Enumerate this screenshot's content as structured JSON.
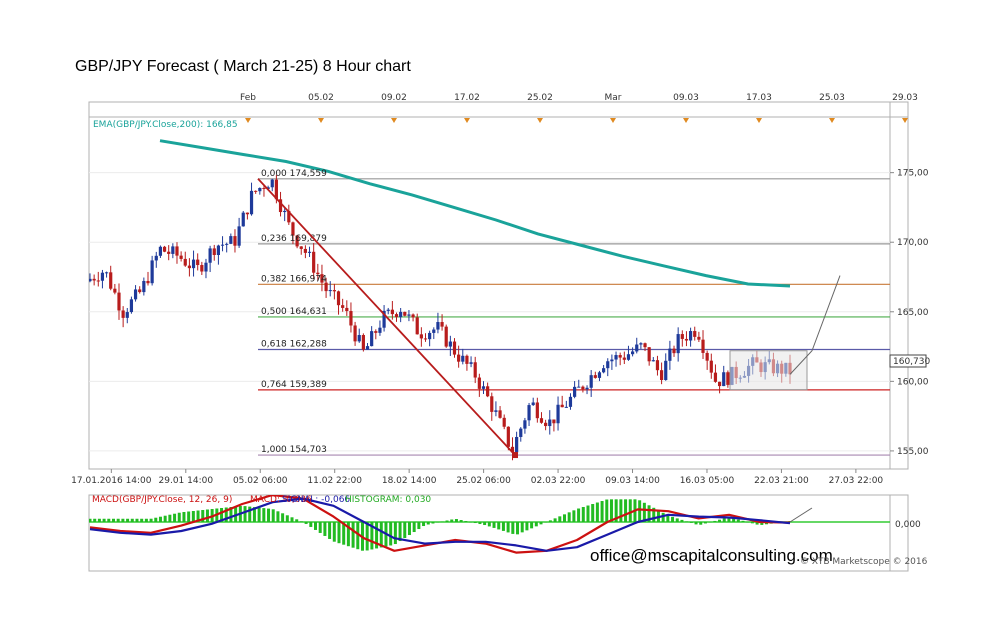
{
  "chart_data": [
    {
      "type": "candlestick",
      "title": "GBP/JPY Forecast ( March 21-25) 8 Hour chart",
      "y_ticks": [
        "175,00",
        "170,00",
        "165,00",
        "160,00",
        "155,00"
      ],
      "y_tick_values": [
        175,
        170,
        165,
        160,
        155
      ],
      "ylim": [
        153.7,
        179.0
      ],
      "x_date_labels": [
        "17.01.2016 14:00",
        "29.01 14:00",
        "05.02 06:00",
        "11.02 22:00",
        "18.02 14:00",
        "25.02 06:00",
        "02.03 22:00",
        "09.03 14:00",
        "16.03 05:00",
        "22.03 21:00",
        "27.03 22:00"
      ],
      "top_time_labels": [
        "Feb",
        "05.02",
        "09.02",
        "17.02",
        "25.02",
        "Mar",
        "09.03",
        "17.03",
        "25.03",
        "29.03"
      ],
      "ema": {
        "label": "EMA(GBP/JPY.Close,200): 166,85",
        "color": "#1aa39a",
        "values": [
          177.3,
          176.8,
          176.3,
          175.8,
          175.1,
          174.2,
          173.4,
          172.5,
          171.6,
          170.6,
          169.8,
          169.0,
          168.3,
          167.6,
          167.0,
          166.85
        ]
      },
      "fibonacci": [
        {
          "ratio": "0,000",
          "price": "174,559",
          "value": 174.559,
          "color": "#999999"
        },
        {
          "ratio": "0,236",
          "price": "169,879",
          "value": 169.879,
          "color": "#999999"
        },
        {
          "ratio": "0,382",
          "price": "166,974",
          "value": 166.974,
          "color": "#c87a3a"
        },
        {
          "ratio": "0,500",
          "price": "164,631",
          "value": 164.631,
          "color": "#4cae4c"
        },
        {
          "ratio": "0,618",
          "price": "162,288",
          "value": 162.288,
          "color": "#5a5aa8"
        },
        {
          "ratio": "0,764",
          "price": "159,389",
          "value": 159.389,
          "color": "#cc2222"
        },
        {
          "ratio": "1,000",
          "price": "154,703",
          "value": 154.703,
          "color": "#a888b0"
        }
      ],
      "last_price": "160,730",
      "price_path": [
        167.2,
        168.0,
        165.0,
        166.5,
        169.5,
        169.0,
        168.0,
        169.8,
        170.0,
        173.5,
        174.56,
        171.0,
        169.0,
        166.5,
        165.0,
        162.0,
        164.5,
        165.3,
        163.5,
        163.8,
        162.0,
        160.5,
        158.0,
        155.0,
        158.5,
        157.0,
        158.5,
        160.0,
        161.5,
        161.8,
        162.5,
        160.5,
        163.0,
        163.8,
        160.0,
        160.5,
        161.2,
        161.0,
        160.73
      ],
      "colors": {
        "up": "#1e3a9a",
        "down": "#b81c1c",
        "trendline": "#b81c1c",
        "consolidation_box": "#e6e6e6"
      }
    },
    {
      "type": "line",
      "title": "MACD(GBP/JPY.Close, 12, 26, 9)",
      "labels": {
        "macd": "MACD: -0,036",
        "signal": "SIGNAL: -0,066",
        "histogram": "HISTOGRAM: 0,030"
      },
      "y_tick": "0,000",
      "series": [
        {
          "name": "MACD",
          "color": "#cc1111",
          "values": [
            -0.3,
            -0.5,
            -0.6,
            -0.2,
            0.3,
            1.0,
            1.5,
            1.3,
            0.3,
            -0.9,
            -1.6,
            -1.3,
            -1.0,
            -1.2,
            -1.7,
            -1.6,
            -1.0,
            0.0,
            0.7,
            0.6,
            0.2,
            0.4,
            0.0,
            -0.036
          ]
        },
        {
          "name": "SIGNAL",
          "color": "#1a1aa8",
          "values": [
            -0.4,
            -0.6,
            -0.7,
            -0.5,
            -0.1,
            0.5,
            1.1,
            1.3,
            0.9,
            0.0,
            -0.9,
            -1.2,
            -1.1,
            -1.1,
            -1.3,
            -1.6,
            -1.4,
            -0.7,
            0.0,
            0.4,
            0.3,
            0.25,
            0.1,
            -0.066
          ]
        }
      ]
    }
  ],
  "footer": {
    "email": "office@mscapitalconsulting.com",
    "copyright": "© XTB Marketscope © 2016"
  }
}
